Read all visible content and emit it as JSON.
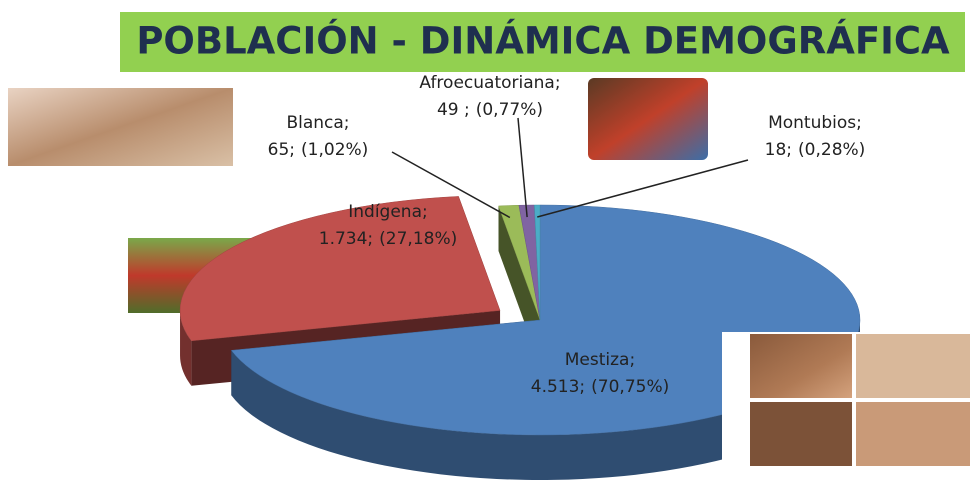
{
  "chart_data": {
    "type": "pie3d",
    "title": "POBLACIÓN - DINÁMICA DEMOGRÁFICA",
    "categories": [
      "Mestiza;",
      "Indígena;",
      "Blanca;",
      "Afroecuatoriana;",
      "Montubios;"
    ],
    "values": [
      4513,
      1734,
      65,
      49,
      18
    ],
    "value_labels": [
      "4.513;",
      "1.734;",
      "65;",
      "49 ;",
      "18;"
    ],
    "percents": [
      70.75,
      27.18,
      1.02,
      0.77,
      0.28
    ],
    "percent_labels": [
      "(70,75%)",
      "(27,18%)",
      "(1,02%)",
      "(0,77%)",
      "(0,28%)"
    ],
    "colors": [
      "#4f81bd",
      "#c0504d",
      "#9bbb59",
      "#8064a2",
      "#4bacc6"
    ]
  }
}
